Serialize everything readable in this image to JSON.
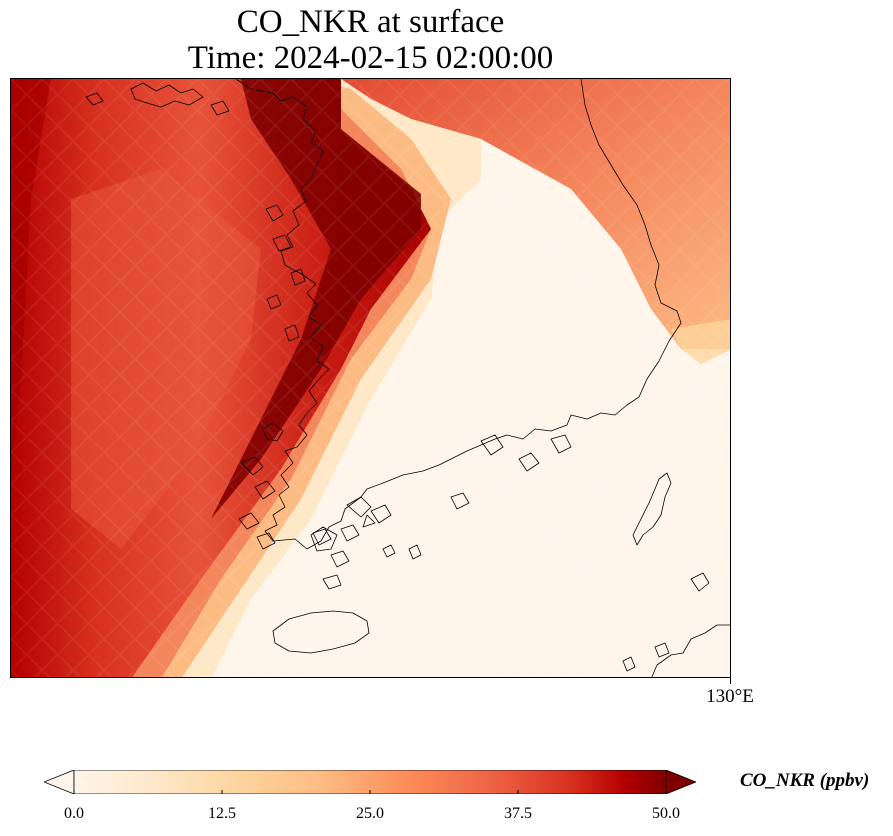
{
  "title": {
    "line1": "CO_NKR at surface",
    "line2": "Time: 2024-02-15 02:00:00"
  },
  "map": {
    "longitude_label": "130°E",
    "features": [
      "concentration-field",
      "coastline",
      "jeju-island",
      "tsushima-island"
    ]
  },
  "colorbar": {
    "title": "CO_NKR (ppbv)",
    "tick_labels": [
      "0.0",
      "12.5",
      "25.0",
      "37.5",
      "50.0"
    ],
    "vmin": 0,
    "vmax": 50,
    "extend": "both",
    "colormap": [
      "#fff5eb",
      "#fdd49e",
      "#fdbb84",
      "#fc8d59",
      "#ef6548",
      "#d7301f",
      "#b30000",
      "#7f0000"
    ]
  },
  "colors": {
    "background": "#fff5e8",
    "coastline": "#000000"
  }
}
